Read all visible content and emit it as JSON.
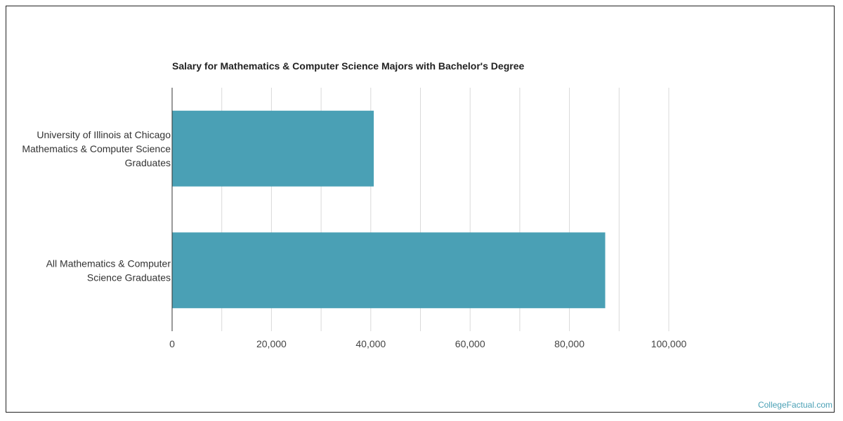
{
  "chart_data": {
    "type": "bar",
    "orientation": "horizontal",
    "title": "Salary for Mathematics & Computer Science Majors with Bachelor's Degree",
    "categories": [
      [
        "University of Illinois at Chicago",
        "Mathematics & Computer Science",
        "Graduates"
      ],
      [
        "All Mathematics & Computer",
        "Science Graduates"
      ]
    ],
    "values": [
      40600,
      87200
    ],
    "xlim": [
      0,
      100000
    ],
    "x_ticks": [
      0,
      20000,
      40000,
      60000,
      80000,
      100000
    ],
    "x_tick_labels": [
      "0",
      "20,000",
      "40,000",
      "60,000",
      "80,000",
      "100,000"
    ],
    "xlabel": "",
    "ylabel": "",
    "grid": true,
    "bar_color": "#4aa0b5"
  },
  "footer": {
    "source": "CollegeFactual.com"
  }
}
